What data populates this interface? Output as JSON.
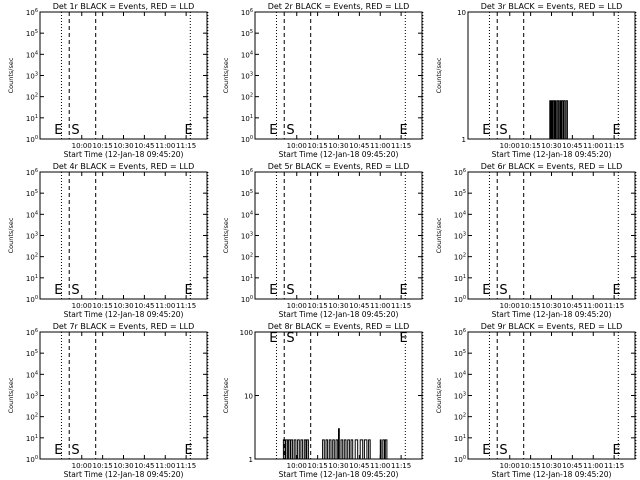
{
  "chart_data": [
    {
      "id": "det1r",
      "type": "line",
      "title": "Det 1r BLACK = Events, RED = LLD",
      "xlabel": "Start Time (12-Jan-18 09:45:20)",
      "ylabel": "Counts/sec",
      "yscale": "log",
      "ylim": [
        1,
        1000000
      ],
      "ytick_labels": [
        "10^0",
        "10^1",
        "10^2",
        "10^3",
        "10^4",
        "10^5",
        "10^6"
      ],
      "xtick_labels": [
        "10:00",
        "10:15",
        "10:30",
        "10:45",
        "11:00",
        "11:15"
      ],
      "markers": [
        "E",
        "S",
        "E"
      ],
      "series": []
    },
    {
      "id": "det2r",
      "type": "line",
      "title": "Det 2r BLACK = Events, RED = LLD",
      "xlabel": "Start Time (12-Jan-18 09:45:20)",
      "ylabel": "Counts/sec",
      "yscale": "log",
      "ylim": [
        1,
        1000000
      ],
      "ytick_labels": [
        "10^0",
        "10^1",
        "10^2",
        "10^3",
        "10^4",
        "10^5",
        "10^6"
      ],
      "xtick_labels": [
        "10:00",
        "10:15",
        "10:30",
        "10:45",
        "11:00",
        "11:15"
      ],
      "markers": [
        "E",
        "S",
        "E"
      ],
      "series": []
    },
    {
      "id": "det3r",
      "type": "line",
      "title": "Det 3r BLACK = Events, RED = LLD",
      "xlabel": "Start Time (12-Jan-18 09:45:20)",
      "ylabel": "Counts/sec",
      "yscale": "log",
      "ylim": [
        1,
        10
      ],
      "ytick_labels": [
        "1",
        "10"
      ],
      "xtick_labels": [
        "10:00",
        "10:15",
        "10:30",
        "10:45",
        "11:00",
        "11:15"
      ],
      "markers": [
        "E",
        "S",
        "E"
      ],
      "series": [
        {
          "values": [
            [
              10.475,
              1
            ],
            [
              10.48,
              2
            ],
            [
              10.49,
              1
            ],
            [
              10.5,
              2
            ],
            [
              10.51,
              1
            ],
            [
              10.52,
              2
            ],
            [
              10.535,
              1
            ],
            [
              10.545,
              2
            ],
            [
              10.555,
              1
            ],
            [
              10.57,
              2
            ],
            [
              10.585,
              1
            ],
            [
              10.6,
              2
            ],
            [
              10.61,
              1
            ],
            [
              10.62,
              2
            ],
            [
              10.635,
              1
            ],
            [
              10.645,
              2
            ],
            [
              10.66,
              1
            ],
            [
              10.675,
              2
            ],
            [
              10.69,
              1
            ]
          ]
        }
      ]
    },
    {
      "id": "det4r",
      "type": "line",
      "title": "Det 4r BLACK = Events, RED = LLD",
      "xlabel": "Start Time (12-Jan-18 09:45:20)",
      "ylabel": "Counts/sec",
      "yscale": "log",
      "ylim": [
        1,
        1000000
      ],
      "ytick_labels": [
        "10^0",
        "10^1",
        "10^2",
        "10^3",
        "10^4",
        "10^5",
        "10^6"
      ],
      "xtick_labels": [
        "10:00",
        "10:15",
        "10:30",
        "10:45",
        "11:00",
        "11:15"
      ],
      "markers": [
        "E",
        "S",
        "E"
      ],
      "series": []
    },
    {
      "id": "det5r",
      "type": "line",
      "title": "Det 5r BLACK = Events, RED = LLD",
      "xlabel": "Start Time (12-Jan-18 09:45:20)",
      "ylabel": "Counts/sec",
      "yscale": "log",
      "ylim": [
        1,
        1000000
      ],
      "ytick_labels": [
        "10^0",
        "10^1",
        "10^2",
        "10^3",
        "10^4",
        "10^5",
        "10^6"
      ],
      "xtick_labels": [
        "10:00",
        "10:15",
        "10:30",
        "10:45",
        "11:00",
        "11:15"
      ],
      "markers": [
        "E",
        "S",
        "E"
      ],
      "series": []
    },
    {
      "id": "det6r",
      "type": "line",
      "title": "Det 6r BLACK = Events, RED = LLD",
      "xlabel": "Start Time (12-Jan-18 09:45:20)",
      "ylabel": "Counts/sec",
      "yscale": "log",
      "ylim": [
        1,
        1000000
      ],
      "ytick_labels": [
        "10^0",
        "10^1",
        "10^2",
        "10^3",
        "10^4",
        "10^5",
        "10^6"
      ],
      "xtick_labels": [
        "10:00",
        "10:15",
        "10:30",
        "10:45",
        "11:00",
        "11:15"
      ],
      "markers": [
        "E",
        "S",
        "E"
      ],
      "series": []
    },
    {
      "id": "det7r",
      "type": "line",
      "title": "Det 7r BLACK = Events, RED = LLD",
      "xlabel": "Start Time (12-Jan-18 09:45:20)",
      "ylabel": "Counts/sec",
      "yscale": "log",
      "ylim": [
        1,
        1000000
      ],
      "ytick_labels": [
        "10^0",
        "10^1",
        "10^2",
        "10^3",
        "10^4",
        "10^5",
        "10^6"
      ],
      "xtick_labels": [
        "10:00",
        "10:15",
        "10:30",
        "10:45",
        "11:00",
        "11:15"
      ],
      "markers": [
        "E",
        "S",
        "E"
      ],
      "series": []
    },
    {
      "id": "det8r",
      "type": "line",
      "title": "Det 8r BLACK = Events, RED = LLD",
      "xlabel": "Start Time (12-Jan-18 09:45:20)",
      "ylabel": "Counts/sec",
      "yscale": "log",
      "ylim": [
        1,
        100
      ],
      "ytick_labels": [
        "1",
        "10",
        "100"
      ],
      "xtick_labels": [
        "10:00",
        "10:15",
        "10:30",
        "10:45",
        "11:00",
        "11:15"
      ],
      "markers": [
        "E",
        "S",
        "E"
      ],
      "series": [
        {
          "values": [
            [
              9.83,
              1
            ],
            [
              9.84,
              2
            ],
            [
              9.86,
              1
            ],
            [
              9.87,
              2
            ],
            [
              9.89,
              1
            ],
            [
              9.9,
              2
            ],
            [
              9.92,
              1
            ],
            [
              9.93,
              2
            ],
            [
              9.95,
              1
            ],
            [
              9.97,
              2
            ],
            [
              9.99,
              1
            ],
            [
              10.01,
              2
            ],
            [
              10.03,
              1
            ],
            [
              10.05,
              2
            ],
            [
              10.07,
              1
            ],
            [
              10.09,
              2
            ],
            [
              10.11,
              1
            ],
            [
              10.12,
              2
            ],
            [
              10.14,
              1
            ],
            [
              10.3,
              1
            ],
            [
              10.31,
              2
            ],
            [
              10.33,
              1
            ],
            [
              10.35,
              2
            ],
            [
              10.37,
              1
            ],
            [
              10.39,
              2
            ],
            [
              10.41,
              1
            ],
            [
              10.43,
              2
            ],
            [
              10.45,
              1
            ],
            [
              10.47,
              2
            ],
            [
              10.49,
              1
            ],
            [
              10.5,
              3
            ],
            [
              10.51,
              1
            ],
            [
              10.53,
              2
            ],
            [
              10.55,
              1
            ],
            [
              10.57,
              2
            ],
            [
              10.59,
              1
            ],
            [
              10.61,
              2
            ],
            [
              10.63,
              1
            ],
            [
              10.65,
              2
            ],
            [
              10.67,
              1
            ],
            [
              10.7,
              2
            ],
            [
              10.73,
              1
            ],
            [
              10.76,
              2
            ],
            [
              10.79,
              1
            ],
            [
              10.81,
              2
            ],
            [
              10.84,
              1
            ],
            [
              10.86,
              2
            ],
            [
              10.88,
              1
            ],
            [
              11.0,
              2
            ],
            [
              11.01,
              1
            ],
            [
              11.03,
              2
            ],
            [
              11.05,
              1
            ],
            [
              11.06,
              2
            ],
            [
              11.08,
              1
            ]
          ]
        }
      ]
    },
    {
      "id": "det9r",
      "type": "line",
      "title": "Det 9r BLACK = Events, RED = LLD",
      "xlabel": "Start Time (12-Jan-18 09:45:20)",
      "ylabel": "Counts/sec",
      "yscale": "log",
      "ylim": [
        1,
        1000000
      ],
      "ytick_labels": [
        "10^0",
        "10^1",
        "10^2",
        "10^3",
        "10^4",
        "10^5",
        "10^6"
      ],
      "xtick_labels": [
        "10:00",
        "10:15",
        "10:30",
        "10:45",
        "11:00",
        "11:15"
      ],
      "markers": [
        "E",
        "S",
        "E"
      ],
      "series": []
    }
  ]
}
